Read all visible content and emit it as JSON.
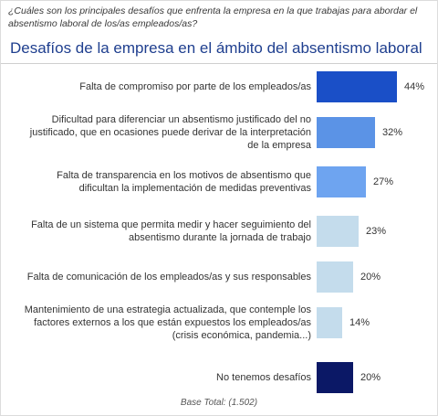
{
  "question": "¿Cuáles son los principales desafíos que enfrenta la empresa en la que trabajas para abordar el absentismo laboral de los/as empleados/as?",
  "chart_data": {
    "type": "bar",
    "orientation": "horizontal",
    "title": "Desafíos de la empresa en el ámbito del absentismo laboral",
    "unit": "%",
    "categories": [
      "Falta de compromiso por parte de los empleados/as",
      "Dificultad para diferenciar un absentismo justificado del no justificado, que en ocasiones puede derivar de la interpretación de la empresa",
      "Falta de transparencia en los motivos de absentismo que dificultan la implementación de medidas preventivas",
      "Falta de un sistema que permita medir y hacer seguimiento del absentismo durante la jornada de trabajo",
      "Falta de comunicación de los empleados/as y sus responsables",
      "Mantenimiento de una estrategia actualizada, que contemple los factores externos a los que están expuestos los empleados/as (crisis económica, pandemia...)",
      "No tenemos desafíos"
    ],
    "values": [
      44,
      32,
      27,
      23,
      20,
      14,
      20
    ],
    "value_labels": [
      "44%",
      "32%",
      "27%",
      "23%",
      "20%",
      "14%",
      "20%"
    ],
    "colors": [
      "#1a4fc7",
      "#5b93e6",
      "#6ea4f0",
      "#c4dcec",
      "#c4dcec",
      "#c4dcec",
      "#0b1866"
    ],
    "xlim": [
      0,
      44
    ],
    "grid": false,
    "legend": "none"
  },
  "footer": "Base Total: (1.502)"
}
